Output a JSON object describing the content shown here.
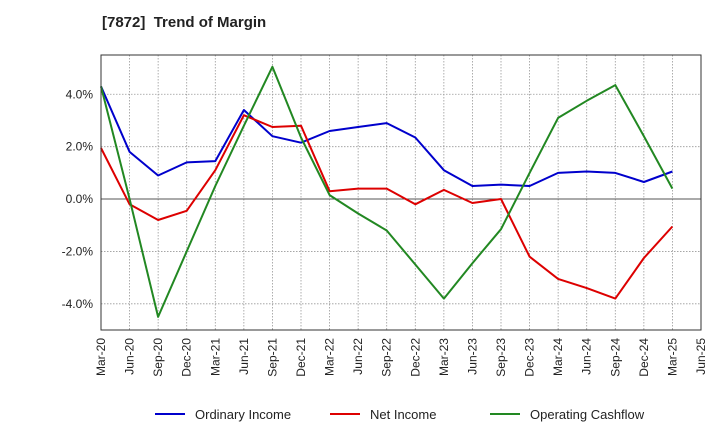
{
  "chart_data": {
    "type": "line",
    "title": "[7872]  Trend of Margin",
    "xlabel": "",
    "ylabel": "",
    "x": [
      "Mar-20",
      "Jun-20",
      "Sep-20",
      "Dec-20",
      "Mar-21",
      "Jun-21",
      "Sep-21",
      "Dec-21",
      "Mar-22",
      "Jun-22",
      "Sep-22",
      "Dec-22",
      "Mar-23",
      "Jun-23",
      "Sep-23",
      "Dec-23",
      "Mar-24",
      "Jun-24",
      "Sep-24",
      "Dec-24",
      "Mar-25",
      "Jun-25"
    ],
    "y_ticks": [
      -4.0,
      -2.0,
      0.0,
      2.0,
      4.0
    ],
    "y_tick_labels": [
      "-4.0%",
      "-2.0%",
      "0.0%",
      "2.0%",
      "4.0%"
    ],
    "ylim": [
      -5.0,
      5.5
    ],
    "grid": true,
    "legend_position": "bottom",
    "series": [
      {
        "name": "Ordinary Income",
        "color": "#0000cc",
        "values": [
          4.3,
          1.8,
          0.9,
          1.4,
          1.45,
          3.4,
          2.4,
          2.15,
          2.6,
          2.75,
          2.9,
          2.35,
          1.1,
          0.5,
          0.55,
          0.5,
          1.0,
          1.05,
          1.0,
          0.65,
          1.05,
          null
        ]
      },
      {
        "name": "Net Income",
        "color": "#dd0000",
        "values": [
          1.95,
          -0.2,
          -0.8,
          -0.45,
          1.1,
          3.2,
          2.75,
          2.8,
          0.3,
          0.4,
          0.4,
          -0.2,
          0.35,
          -0.15,
          0.0,
          -2.2,
          -3.05,
          -3.4,
          -3.8,
          -2.25,
          -1.05,
          null
        ]
      },
      {
        "name": "Operating Cashflow",
        "color": "#228822",
        "values": [
          4.3,
          0.0,
          -4.5,
          -2.0,
          0.5,
          2.8,
          5.05,
          2.35,
          0.15,
          -0.55,
          -1.2,
          -2.5,
          -3.8,
          -2.45,
          -1.15,
          1.0,
          3.1,
          3.75,
          4.35,
          2.4,
          0.4,
          null
        ]
      }
    ]
  }
}
